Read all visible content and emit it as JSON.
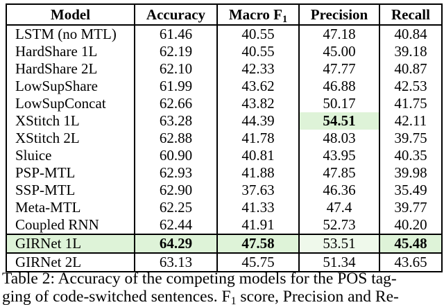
{
  "table": {
    "header": {
      "model": "Model",
      "accuracy": "Accuracy",
      "macro_f1_base": "Macro F",
      "macro_f1_sub": "1",
      "precision": "Precision",
      "recall": "Recall"
    },
    "rows": [
      {
        "model": "LSTM (no MTL)",
        "accuracy": "61.46",
        "macro_f1": "40.55",
        "precision": "47.18",
        "recall": "40.84"
      },
      {
        "model": "HardShare 1L",
        "accuracy": "62.19",
        "macro_f1": "40.55",
        "precision": "45.00",
        "recall": "39.18"
      },
      {
        "model": "HardShare 2L",
        "accuracy": "62.10",
        "macro_f1": "42.33",
        "precision": "47.77",
        "recall": "40.87"
      },
      {
        "model": "LowSupShare",
        "accuracy": "61.99",
        "macro_f1": "43.62",
        "precision": "46.88",
        "recall": "42.53"
      },
      {
        "model": "LowSupConcat",
        "accuracy": "62.66",
        "macro_f1": "43.82",
        "precision": "50.17",
        "recall": "41.75"
      },
      {
        "model": "XStitch 1L",
        "accuracy": "63.28",
        "macro_f1": "44.39",
        "precision": "54.51",
        "recall": "42.11"
      },
      {
        "model": "XStitch 2L",
        "accuracy": "62.88",
        "macro_f1": "41.78",
        "precision": "48.03",
        "recall": "39.75"
      },
      {
        "model": "Sluice",
        "accuracy": "60.90",
        "macro_f1": "40.81",
        "precision": "43.95",
        "recall": "40.35"
      },
      {
        "model": "PSP-MTL",
        "accuracy": "62.93",
        "macro_f1": "41.88",
        "precision": "47.85",
        "recall": "39.98"
      },
      {
        "model": "SSP-MTL",
        "accuracy": "62.90",
        "macro_f1": "37.63",
        "precision": "46.36",
        "recall": "35.49"
      },
      {
        "model": "Meta-MTL",
        "accuracy": "62.25",
        "macro_f1": "41.33",
        "precision": "47.4",
        "recall": "39.77"
      },
      {
        "model": "Coupled RNN",
        "accuracy": "62.44",
        "macro_f1": "41.91",
        "precision": "52.73",
        "recall": "40.20"
      },
      {
        "model": "GIRNet 1L",
        "accuracy": "64.29",
        "macro_f1": "47.58",
        "precision": "53.51",
        "recall": "45.48"
      },
      {
        "model": "GIRNet 2L",
        "accuracy": "63.13",
        "macro_f1": "45.75",
        "precision": "51.34",
        "recall": "43.65"
      }
    ],
    "highlights": {
      "best_precision_cell": "XStitch 1L / 54.51",
      "best_row": "GIRNet 1L"
    }
  },
  "caption": {
    "line1": "Table 2: Accuracy of the competing models for the POS tag-",
    "line2_pre": "ging of code-switched sentences. F",
    "line2_sub": "1",
    "line2_post": " score, Precision and Re-"
  },
  "colors": {
    "highlight_green": "#def3d8",
    "highlight_green_light": "#eff9eb",
    "border": "#000000",
    "background": "#ffffff"
  }
}
